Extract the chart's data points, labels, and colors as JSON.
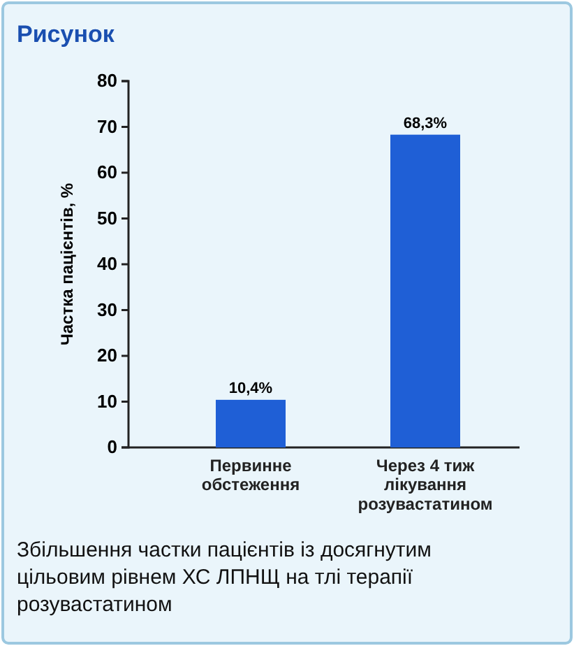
{
  "chart_data": {
    "type": "bar",
    "title": "Рисунок",
    "ylabel": "Частка пацієнтів, %",
    "categories": [
      "Первинне\nобстеження",
      "Через 4 тиж\nлікування\nрозувастатином"
    ],
    "values": [
      10.4,
      68.3
    ],
    "value_labels": [
      "10,4%",
      "68,3%"
    ],
    "color": "#1f5fd6",
    "ylim": [
      0,
      80
    ],
    "yticks": [
      0,
      10,
      20,
      30,
      40,
      50,
      60,
      70,
      80
    ],
    "grid": false,
    "annotations": [
      "Збільшення частки пацієнтів із досягнутим\nцільовим рівнем ХС ЛПНЩ на тлі терапії\nрозувастатином"
    ]
  }
}
